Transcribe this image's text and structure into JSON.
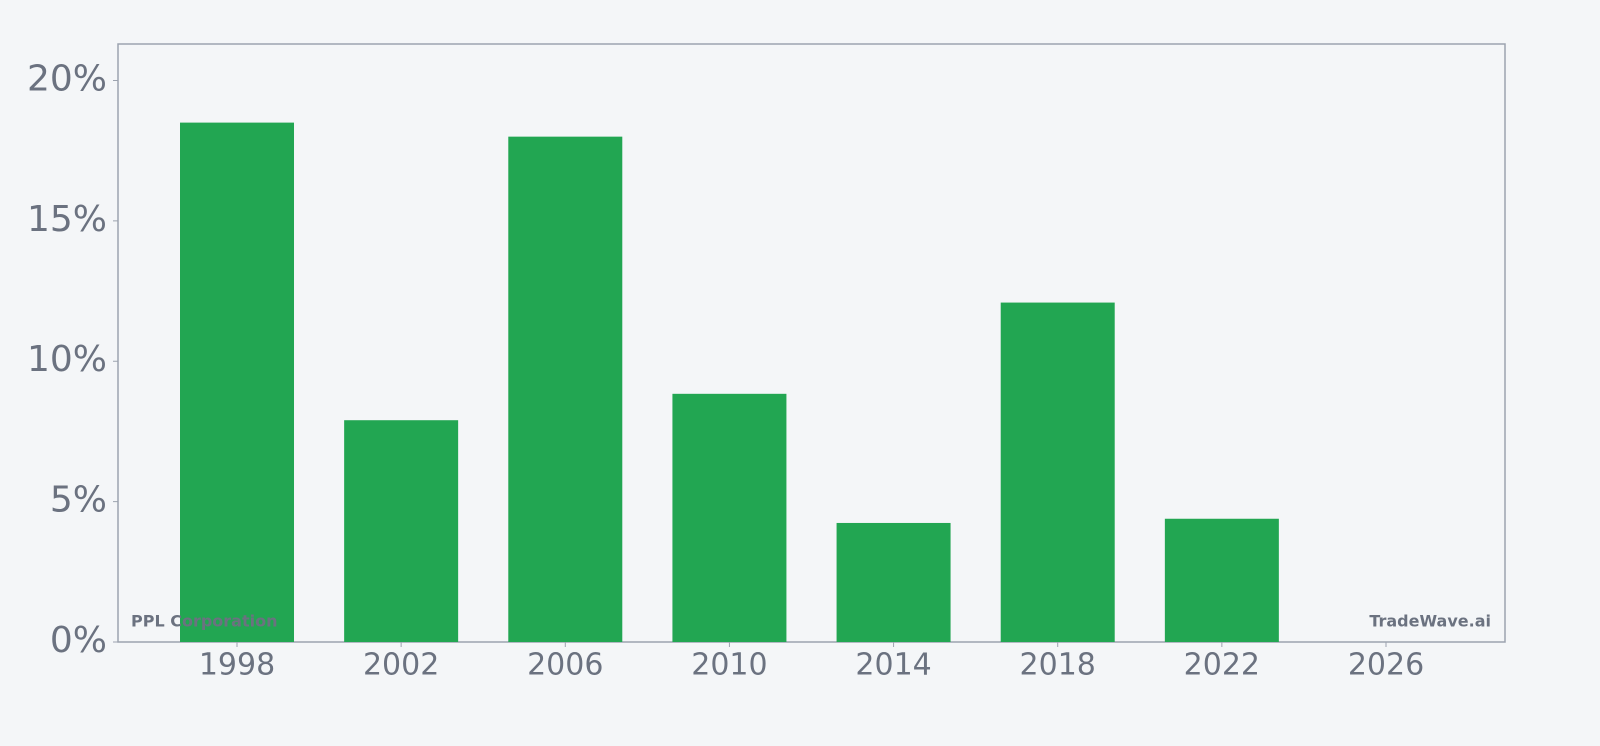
{
  "chart_data": {
    "type": "bar",
    "x": [
      1998,
      2002,
      2006,
      2010,
      2014,
      2018,
      2022
    ],
    "values": [
      18.5,
      7.9,
      18.0,
      8.84,
      4.24,
      12.09,
      4.39
    ],
    "color": "#22a652",
    "xlim": [
      1995.1,
      2028.9
    ],
    "xticks": [
      1998,
      2002,
      2006,
      2010,
      2014,
      2018,
      2022,
      2026
    ],
    "ylim": [
      0,
      21.3
    ],
    "yticks": [
      {
        "value": 0,
        "label": "0%"
      },
      {
        "value": 5,
        "label": "5%"
      },
      {
        "value": 10,
        "label": "10%"
      },
      {
        "value": 15,
        "label": "15%"
      },
      {
        "value": 20,
        "label": "20%"
      }
    ],
    "annotations": [
      "PPL Corporation",
      "TradeWave.ai"
    ]
  }
}
